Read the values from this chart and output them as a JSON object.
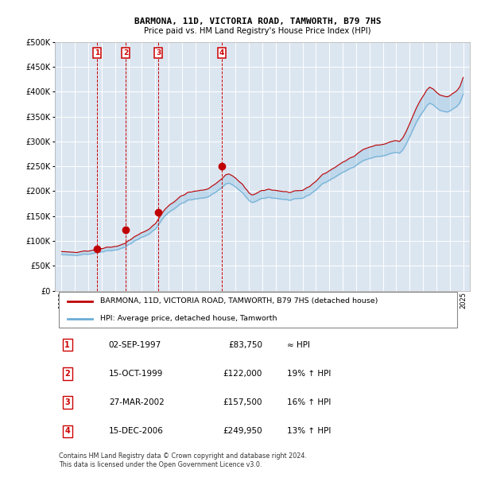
{
  "title": "BARMONA, 11D, VICTORIA ROAD, TAMWORTH, B79 7HS",
  "subtitle": "Price paid vs. HM Land Registry's House Price Index (HPI)",
  "footer": "Contains HM Land Registry data © Crown copyright and database right 2024.\nThis data is licensed under the Open Government Licence v3.0.",
  "legend_line1": "BARMONA, 11D, VICTORIA ROAD, TAMWORTH, B79 7HS (detached house)",
  "legend_line2": "HPI: Average price, detached house, Tamworth",
  "sale_markers": [
    {
      "num": 1,
      "date": "02-SEP-1997",
      "price": 83750,
      "hpi_note": "≈ HPI",
      "x_year": 1997.67
    },
    {
      "num": 2,
      "date": "15-OCT-1999",
      "price": 122000,
      "hpi_note": "19% ↑ HPI",
      "x_year": 1999.79
    },
    {
      "num": 3,
      "date": "27-MAR-2002",
      "price": 157500,
      "hpi_note": "16% ↑ HPI",
      "x_year": 2002.23
    },
    {
      "num": 4,
      "date": "15-DEC-2006",
      "price": 249950,
      "hpi_note": "13% ↑ HPI",
      "x_year": 2006.96
    }
  ],
  "hpi_line_color": "#6baed6",
  "price_line_color": "#c00000",
  "marker_box_color": "#cc0000",
  "background_color": "#dce6f1",
  "grid_color": "#ffffff",
  "ylim": [
    0,
    500000
  ],
  "xlim": [
    1994.5,
    2025.5
  ],
  "yticks": [
    0,
    50000,
    100000,
    150000,
    200000,
    250000,
    300000,
    350000,
    400000,
    450000,
    500000
  ],
  "xticks": [
    1995,
    1996,
    1997,
    1998,
    1999,
    2000,
    2001,
    2002,
    2003,
    2004,
    2005,
    2006,
    2007,
    2008,
    2009,
    2010,
    2011,
    2012,
    2013,
    2014,
    2015,
    2016,
    2017,
    2018,
    2019,
    2020,
    2021,
    2022,
    2023,
    2024,
    2025
  ]
}
